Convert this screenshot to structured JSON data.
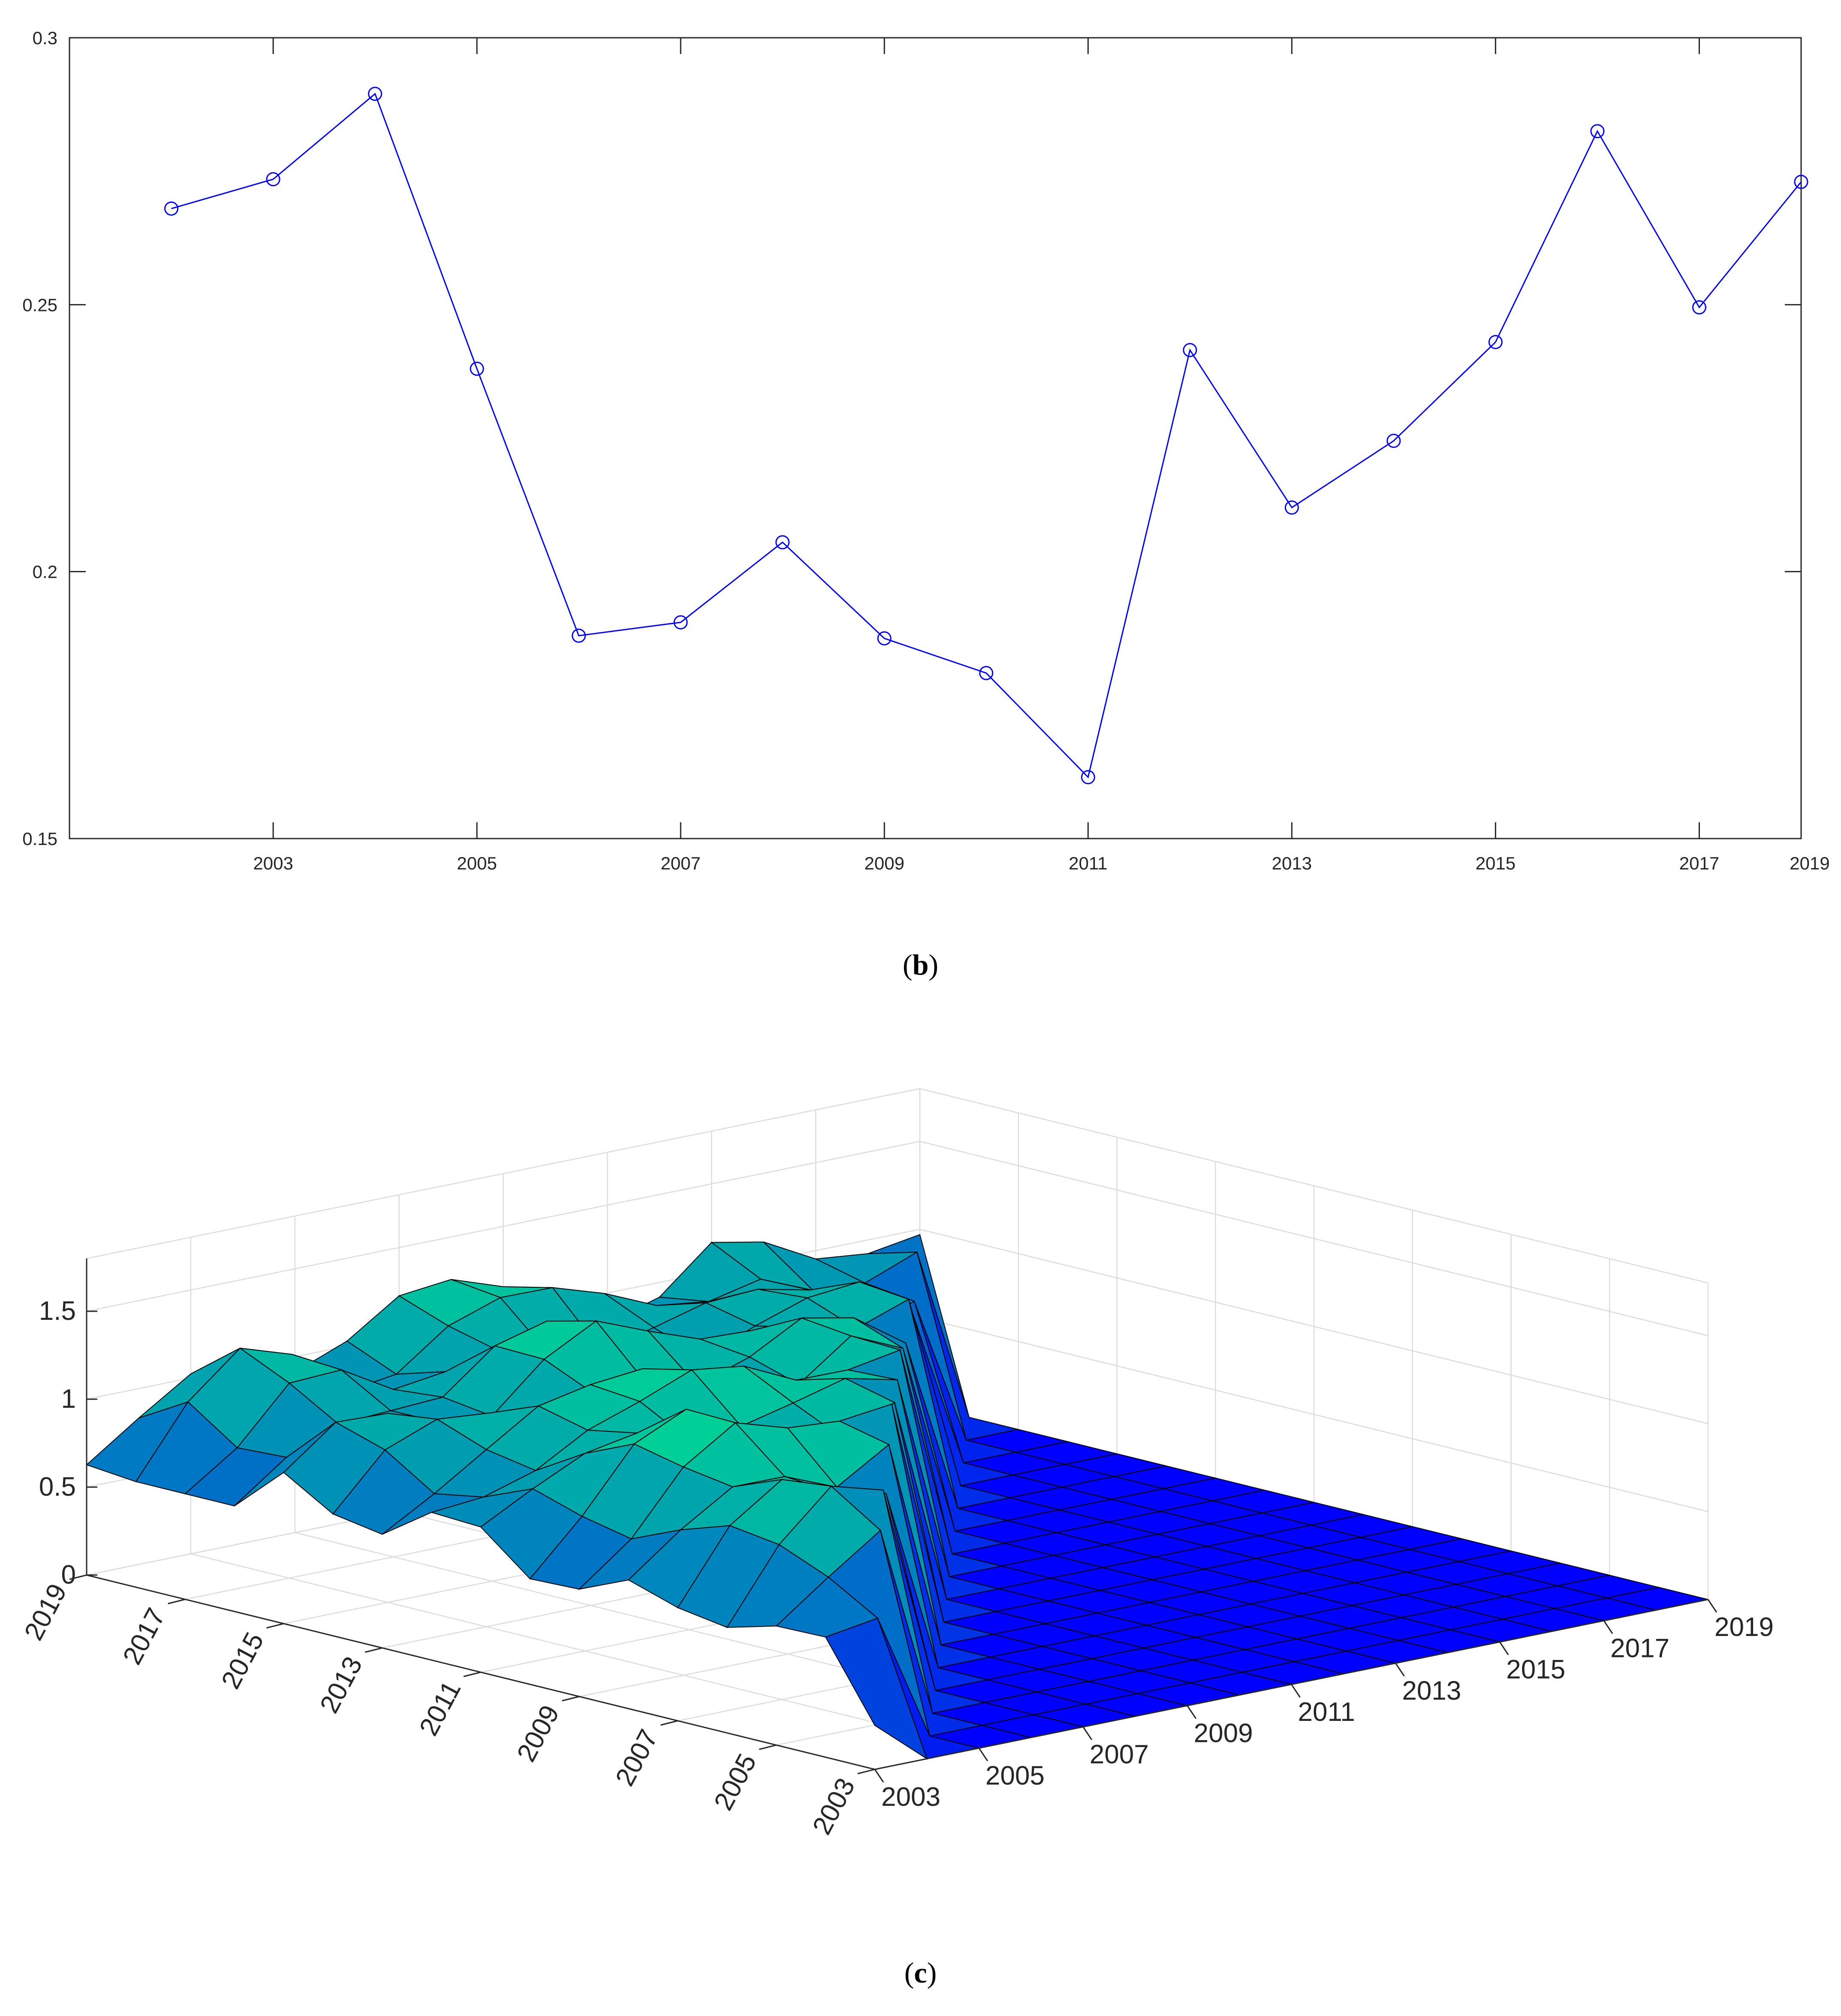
{
  "panel_labels": {
    "b": "b",
    "c": "c"
  },
  "chart_data": [
    {
      "type": "line",
      "panel": "b",
      "title": "",
      "xlabel": "",
      "ylabel": "",
      "x": [
        2002,
        2003,
        2004,
        2005,
        2006,
        2007,
        2008,
        2009,
        2010,
        2011,
        2012,
        2013,
        2014,
        2015,
        2016,
        2017,
        2018
      ],
      "x_tick_values": [
        2003,
        2005,
        2007,
        2009,
        2011,
        2013,
        2015,
        2017,
        2019
      ],
      "x_tick_labels": [
        "2003",
        "2005",
        "2007",
        "2009",
        "2011",
        "2013",
        "2015",
        "2017",
        "2019"
      ],
      "xlim": [
        2001,
        2018
      ],
      "ylim": [
        0.15,
        0.3
      ],
      "y_tick_values": [
        0.15,
        0.2,
        0.25,
        0.3
      ],
      "y_tick_labels": [
        "0.15",
        "0.2",
        "0.25",
        "0.3"
      ],
      "marker": "circle",
      "grid": false,
      "color": "#0000ff",
      "series": [
        {
          "values": [
            0.268,
            0.2735,
            0.2895,
            0.238,
            0.188,
            0.1905,
            0.2055,
            0.1875,
            0.181,
            0.1615,
            0.2415,
            0.212,
            0.2245,
            0.243,
            0.2825,
            0.2495,
            0.273
          ]
        }
      ]
    },
    {
      "type": "surface",
      "panel": "c",
      "title": "",
      "x_tick_labels": [
        "2003",
        "2005",
        "2007",
        "2009",
        "2011",
        "2013",
        "2015",
        "2017",
        "2019"
      ],
      "y_tick_labels": [
        "2019",
        "2017",
        "2015",
        "2013",
        "2011",
        "2009",
        "2007",
        "2005",
        "2003"
      ],
      "z_tick_labels": [
        "0",
        "0.5",
        "1",
        "1.5"
      ],
      "z_tick_values": [
        0,
        0.5,
        1,
        1.5
      ],
      "zlim": [
        0,
        1.8
      ],
      "grid": true,
      "colormap": "winter",
      "colormap_low": "#0000ff",
      "colormap_high": "#00ff80",
      "z_upper_triangle": 0,
      "z_diagonal_values": [
        0.25,
        0.73,
        1.1,
        1.2,
        1.05,
        1.2,
        1.3,
        1.18,
        1.18,
        1.22,
        1.1,
        1.0,
        1.12,
        0.93,
        0.85,
        1.0,
        0.97
      ],
      "z_lower_triangle_range": [
        0.6,
        1.62
      ]
    }
  ]
}
